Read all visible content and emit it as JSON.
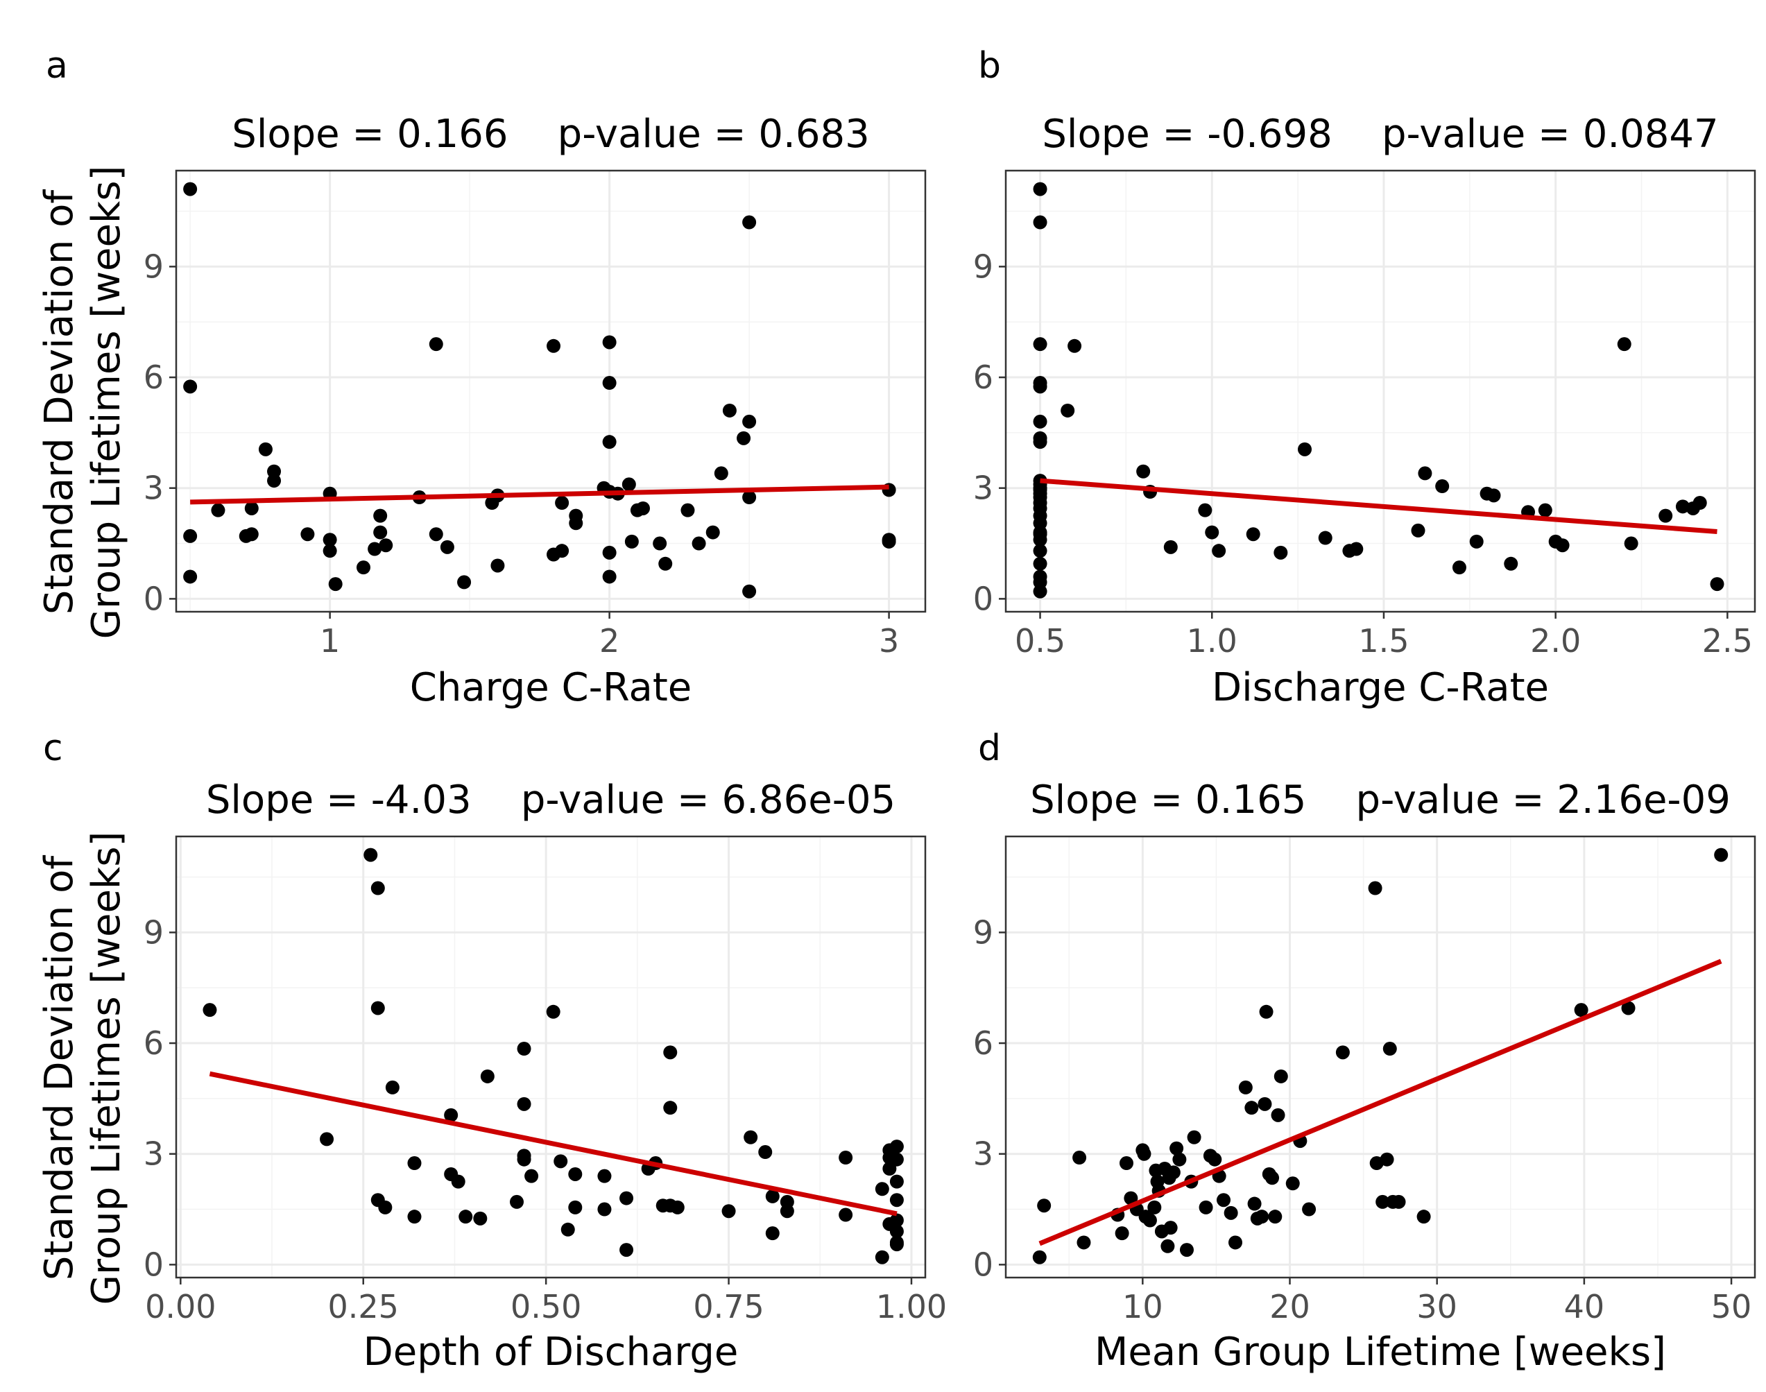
{
  "colors": {
    "points": "#000000",
    "fit_line": "#cc0000"
  },
  "shared": {
    "ylabel_line1": "Standard Deviation of",
    "ylabel_line2": "Group Lifetimes [weeks]"
  },
  "chart_data": [
    {
      "type": "scatter",
      "panel": "a",
      "title": "Slope = 0.166    p-value = 0.683",
      "xlabel": "Charge C-Rate",
      "ylabel": "Standard Deviation of Group Lifetimes [weeks]",
      "xlim": [
        0.45,
        3.13
      ],
      "ylim": [
        -0.35,
        11.6
      ],
      "xticks": [
        1,
        2,
        3
      ],
      "xtick_labels": [
        "1",
        "2",
        "3"
      ],
      "yticks": [
        0,
        3,
        6,
        9
      ],
      "ytick_labels": [
        "0",
        "3",
        "6",
        "9"
      ],
      "x": [
        0.5,
        0.5,
        0.5,
        0.5,
        0.6,
        0.7,
        0.72,
        0.72,
        0.77,
        0.8,
        0.8,
        0.92,
        1.0,
        1.0,
        1.0,
        1.02,
        1.12,
        1.16,
        1.18,
        1.18,
        1.2,
        1.32,
        1.38,
        1.38,
        1.42,
        1.48,
        1.58,
        1.6,
        1.6,
        1.8,
        1.8,
        1.83,
        1.83,
        1.88,
        1.88,
        1.98,
        2.0,
        2.0,
        2.0,
        2.0,
        2.0,
        2.0,
        2.03,
        2.07,
        2.08,
        2.1,
        2.12,
        2.18,
        2.2,
        2.28,
        2.32,
        2.37,
        2.4,
        2.43,
        2.48,
        2.5,
        2.5,
        2.5,
        2.5,
        3.0,
        3.0,
        3.0
      ],
      "y": [
        11.1,
        5.75,
        1.7,
        0.6,
        2.4,
        1.7,
        1.75,
        2.45,
        4.05,
        3.45,
        3.2,
        1.75,
        2.85,
        1.6,
        1.3,
        0.4,
        0.85,
        1.35,
        2.25,
        1.8,
        1.45,
        2.75,
        6.9,
        1.75,
        1.4,
        0.45,
        2.6,
        2.8,
        0.9,
        6.85,
        1.2,
        2.6,
        1.3,
        2.25,
        2.05,
        3.0,
        6.95,
        5.85,
        4.25,
        1.25,
        0.6,
        2.9,
        2.85,
        3.1,
        1.55,
        2.4,
        2.45,
        1.5,
        0.95,
        2.4,
        1.5,
        1.8,
        3.4,
        5.1,
        4.35,
        10.2,
        2.75,
        0.2,
        4.8,
        2.95,
        1.6,
        1.55
      ],
      "fit": {
        "x": [
          0.5,
          3.0
        ],
        "y": [
          2.62,
          3.03
        ]
      }
    },
    {
      "type": "scatter",
      "panel": "b",
      "title": "Slope = -0.698    p-value = 0.0847",
      "xlabel": "Discharge C-Rate",
      "ylabel": "Standard Deviation of Group Lifetimes [weeks]",
      "xlim": [
        0.4,
        2.58
      ],
      "ylim": [
        -0.35,
        11.6
      ],
      "xticks": [
        0.5,
        1.0,
        1.5,
        2.0,
        2.5
      ],
      "xtick_labels": [
        "0.5",
        "1.0",
        "1.5",
        "2.0",
        "2.5"
      ],
      "yticks": [
        0,
        3,
        6,
        9
      ],
      "ytick_labels": [
        "0",
        "3",
        "6",
        "9"
      ],
      "x": [
        0.5,
        0.5,
        0.5,
        0.5,
        0.5,
        0.5,
        0.5,
        0.5,
        0.5,
        0.5,
        0.5,
        0.5,
        0.5,
        0.5,
        0.5,
        0.5,
        0.5,
        0.5,
        0.5,
        0.5,
        0.5,
        0.5,
        0.5,
        0.5,
        0.5,
        0.5,
        0.58,
        0.6,
        0.8,
        0.82,
        0.88,
        0.98,
        1.0,
        1.02,
        1.12,
        1.2,
        1.27,
        1.33,
        1.4,
        1.42,
        1.6,
        1.62,
        1.67,
        1.72,
        1.77,
        1.8,
        1.82,
        1.87,
        1.92,
        1.97,
        2.0,
        2.02,
        2.2,
        2.22,
        2.32,
        2.37,
        2.4,
        2.42,
        2.47
      ],
      "y": [
        11.1,
        10.2,
        6.9,
        5.85,
        5.75,
        4.8,
        4.35,
        4.25,
        3.2,
        3.1,
        3.0,
        2.95,
        2.85,
        2.75,
        2.6,
        2.45,
        2.25,
        2.05,
        1.8,
        1.75,
        1.6,
        1.3,
        0.95,
        0.6,
        0.45,
        0.2,
        5.1,
        6.85,
        3.45,
        2.9,
        1.4,
        2.4,
        1.8,
        1.3,
        1.75,
        1.25,
        4.05,
        1.65,
        1.3,
        1.35,
        1.85,
        3.4,
        3.05,
        0.85,
        1.55,
        2.85,
        2.8,
        0.95,
        2.35,
        2.4,
        1.55,
        1.45,
        6.9,
        1.5,
        2.25,
        2.5,
        2.45,
        2.6,
        0.4
      ],
      "fit": {
        "x": [
          0.5,
          2.47
        ],
        "y": [
          3.2,
          1.82
        ]
      }
    },
    {
      "type": "scatter",
      "panel": "c",
      "title": "Slope = -4.03    p-value = 6.86e-05",
      "xlabel": "Depth of Discharge",
      "ylabel": "Standard Deviation of Group Lifetimes [weeks]",
      "xlim": [
        -0.006,
        1.019
      ],
      "ylim": [
        -0.35,
        11.6
      ],
      "xticks": [
        0.0,
        0.25,
        0.5,
        0.75,
        1.0
      ],
      "xtick_labels": [
        "0.00",
        "0.25",
        "0.50",
        "0.75",
        "1.00"
      ],
      "yticks": [
        0,
        3,
        6,
        9
      ],
      "ytick_labels": [
        "0",
        "3",
        "6",
        "9"
      ],
      "x": [
        0.04,
        0.2,
        0.26,
        0.27,
        0.27,
        0.27,
        0.28,
        0.29,
        0.32,
        0.32,
        0.37,
        0.37,
        0.38,
        0.39,
        0.41,
        0.42,
        0.46,
        0.47,
        0.47,
        0.47,
        0.47,
        0.48,
        0.51,
        0.52,
        0.53,
        0.54,
        0.54,
        0.58,
        0.58,
        0.61,
        0.61,
        0.64,
        0.65,
        0.66,
        0.67,
        0.67,
        0.67,
        0.68,
        0.75,
        0.78,
        0.8,
        0.81,
        0.81,
        0.83,
        0.83,
        0.91,
        0.91,
        0.96,
        0.96,
        0.97,
        0.97,
        0.97,
        0.97,
        0.98,
        0.98,
        0.98,
        0.98,
        0.98,
        0.98,
        0.98,
        0.98
      ],
      "y": [
        6.9,
        3.4,
        11.1,
        10.2,
        6.95,
        1.75,
        1.55,
        4.8,
        2.75,
        1.3,
        4.05,
        2.45,
        2.25,
        1.3,
        1.25,
        5.1,
        1.7,
        5.85,
        4.35,
        2.95,
        2.85,
        2.4,
        6.85,
        2.8,
        0.95,
        2.45,
        1.55,
        2.4,
        1.5,
        0.4,
        1.8,
        2.6,
        2.75,
        1.6,
        4.25,
        5.75,
        1.6,
        1.55,
        1.45,
        3.45,
        3.05,
        0.85,
        1.85,
        1.7,
        1.45,
        2.9,
        1.35,
        2.05,
        0.2,
        3.1,
        2.9,
        2.6,
        1.1,
        3.2,
        2.85,
        2.25,
        1.75,
        1.2,
        0.9,
        0.6,
        0.55
      ],
      "fit": {
        "x": [
          0.04,
          0.98
        ],
        "y": [
          5.17,
          1.38
        ]
      }
    },
    {
      "type": "scatter",
      "panel": "d",
      "title": "Slope = 0.165    p-value = 2.16e-09",
      "xlabel": "Mean Group Lifetime [weeks]",
      "ylabel": "Standard Deviation of Group Lifetimes [weeks]",
      "xlim": [
        0.7,
        51.6
      ],
      "ylim": [
        -0.35,
        11.6
      ],
      "xticks": [
        10,
        20,
        30,
        40,
        50
      ],
      "xtick_labels": [
        "10",
        "20",
        "30",
        "40",
        "50"
      ],
      "yticks": [
        0,
        3,
        6,
        9
      ],
      "ytick_labels": [
        "0",
        "3",
        "6",
        "9"
      ],
      "x": [
        3.0,
        3.3,
        6.0,
        5.7,
        8.3,
        8.6,
        8.9,
        9.2,
        9.6,
        10.0,
        10.1,
        10.2,
        10.5,
        10.8,
        10.9,
        11.0,
        11.1,
        11.3,
        11.5,
        11.7,
        11.8,
        11.9,
        12.1,
        12.3,
        12.5,
        13.0,
        13.3,
        13.5,
        14.3,
        14.6,
        14.9,
        15.2,
        15.5,
        16.0,
        16.3,
        17.0,
        17.4,
        17.6,
        17.8,
        18.1,
        18.3,
        18.4,
        18.6,
        18.8,
        19.0,
        19.2,
        19.4,
        20.2,
        20.7,
        21.3,
        23.6,
        25.8,
        25.9,
        26.3,
        26.6,
        26.8,
        27.0,
        27.4,
        29.1,
        39.8,
        43.0,
        49.3
      ],
      "y": [
        0.2,
        1.6,
        0.6,
        2.9,
        1.35,
        0.85,
        2.75,
        1.8,
        1.5,
        3.1,
        3.0,
        1.3,
        1.2,
        1.55,
        2.55,
        2.25,
        2.0,
        0.9,
        2.6,
        0.5,
        2.35,
        1.0,
        2.5,
        3.15,
        2.85,
        0.4,
        2.25,
        3.45,
        1.55,
        2.95,
        2.85,
        2.4,
        1.75,
        1.4,
        0.6,
        4.8,
        4.25,
        1.65,
        1.25,
        1.3,
        4.35,
        6.85,
        2.45,
        2.35,
        1.3,
        4.05,
        5.1,
        2.2,
        3.35,
        1.5,
        5.75,
        10.2,
        2.75,
        1.7,
        2.85,
        5.85,
        1.7,
        1.7,
        1.3,
        6.9,
        6.95,
        11.1
      ],
      "fit": {
        "x": [
          3.0,
          49.3
        ],
        "y": [
          0.57,
          8.22
        ]
      }
    }
  ]
}
